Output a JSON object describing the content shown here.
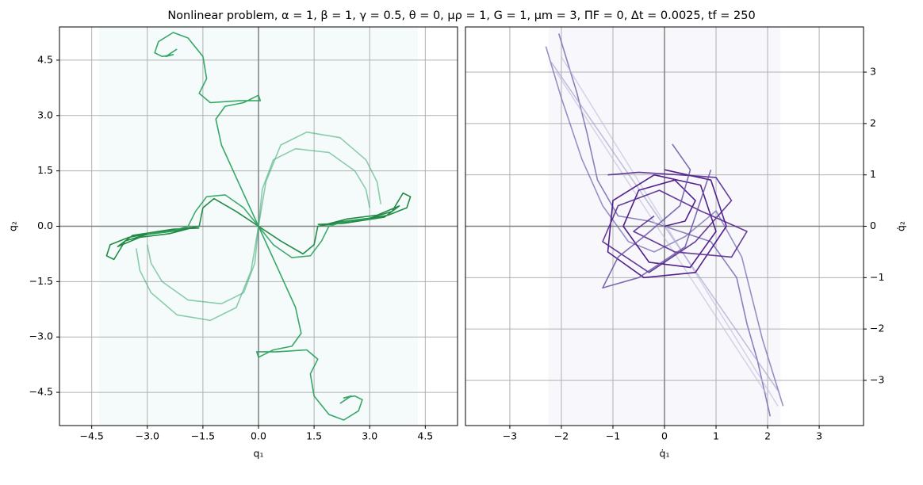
{
  "chart_data": [
    {
      "type": "line",
      "title": "Nonlinear problem, α = 1, β = 1, γ = 0.5, θ = 0, μρ = 1, G = 1, μm = 3, ΠF = 0, Δt = 0.0025, tf = 250",
      "xlabel": "q₁",
      "ylabel": "q₂",
      "xlim": [
        -5.37,
        5.37
      ],
      "ylim": [
        -5.4,
        5.4
      ],
      "xticks": [
        {
          "value": -4.5,
          "label": "−4.5"
        },
        {
          "value": -3,
          "label": "−3.0"
        },
        {
          "value": -1.5,
          "label": "−1.5"
        },
        {
          "value": 0,
          "label": "0.0"
        },
        1.5,
        {
          "value": 3,
          "label": "3.0"
        },
        4.5
      ],
      "yticks": [
        {
          "value": -4.5,
          "label": "−4.5"
        },
        {
          "value": -3,
          "label": "−3.0"
        },
        {
          "value": -1.5,
          "label": "−1.5"
        },
        {
          "value": 0,
          "label": "0.0"
        },
        1.5,
        {
          "value": 3,
          "label": "3.0"
        },
        4.5
      ],
      "y_axis_side": "left",
      "grid": true,
      "span_x": [
        -4.3,
        4.3
      ],
      "span_color": "#f5fbfb",
      "series": [
        {
          "color": "#2ca25f",
          "opacity": 0.95,
          "x": [
            0,
            -0.5,
            -1.0,
            -1.15,
            -0.9,
            -0.4,
            0.0,
            0.05,
            -0.5,
            -1.3,
            -1.6,
            -1.4,
            -1.5,
            -1.9,
            -2.3,
            -2.7,
            -2.8,
            -2.6,
            -2.3,
            -2.5,
            -2.2
          ],
          "values": [
            0,
            1.1,
            2.2,
            2.9,
            3.25,
            3.35,
            3.55,
            3.4,
            3.4,
            3.35,
            3.6,
            4.0,
            4.6,
            5.1,
            5.25,
            5.0,
            4.7,
            4.6,
            4.65,
            4.6,
            4.8
          ]
        },
        {
          "color": "#2ca25f",
          "opacity": 0.95,
          "x": [
            0,
            0.5,
            1.0,
            1.15,
            0.9,
            0.4,
            0.0,
            -0.05,
            0.5,
            1.3,
            1.6,
            1.4,
            1.5,
            1.9,
            2.3,
            2.7,
            2.8,
            2.6,
            2.3,
            2.5,
            2.2
          ],
          "values": [
            0,
            -1.1,
            -2.2,
            -2.9,
            -3.25,
            -3.35,
            -3.55,
            -3.4,
            -3.4,
            -3.35,
            -3.6,
            -4.0,
            -4.6,
            -5.1,
            -5.25,
            -5.0,
            -4.7,
            -4.6,
            -4.65,
            -4.6,
            -4.8
          ]
        },
        {
          "color": "#238b45",
          "opacity": 1,
          "x": [
            0,
            0.6,
            1.2,
            1.5,
            1.6,
            2.2,
            3.0,
            3.6,
            3.9,
            4.1,
            4.0,
            3.5,
            2.5,
            1.7,
            2.4,
            3.2,
            3.8,
            3.4,
            2.3,
            1.6
          ],
          "values": [
            0,
            -0.4,
            -0.75,
            -0.5,
            0.0,
            0.12,
            0.22,
            0.4,
            0.9,
            0.8,
            0.5,
            0.3,
            0.12,
            0.02,
            0.2,
            0.3,
            0.55,
            0.25,
            0.08,
            0.05
          ]
        },
        {
          "color": "#238b45",
          "opacity": 1,
          "x": [
            0,
            -0.6,
            -1.2,
            -1.5,
            -1.6,
            -2.2,
            -3.0,
            -3.6,
            -3.9,
            -4.1,
            -4.0,
            -3.5,
            -2.5,
            -1.7,
            -2.4,
            -3.2,
            -3.8,
            -3.4,
            -2.3,
            -1.6
          ],
          "values": [
            0,
            0.4,
            0.75,
            0.5,
            0.0,
            -0.12,
            -0.22,
            -0.4,
            -0.9,
            -0.8,
            -0.5,
            -0.3,
            -0.12,
            -0.02,
            -0.2,
            -0.3,
            -0.55,
            -0.25,
            -0.08,
            -0.05
          ]
        },
        {
          "color": "#41ae76",
          "opacity": 0.6,
          "x": [
            0,
            0.2,
            0.6,
            1.3,
            2.2,
            2.9,
            3.2,
            3.3
          ],
          "values": [
            0,
            1.2,
            2.2,
            2.55,
            2.4,
            1.8,
            1.2,
            0.6
          ]
        },
        {
          "color": "#41ae76",
          "opacity": 0.6,
          "x": [
            0,
            0.1,
            0.4,
            1.0,
            1.9,
            2.6,
            2.9,
            3.0
          ],
          "values": [
            0,
            1.0,
            1.8,
            2.1,
            2.0,
            1.5,
            1.0,
            0.5
          ]
        },
        {
          "color": "#41ae76",
          "opacity": 0.6,
          "x": [
            0,
            -0.2,
            -0.6,
            -1.3,
            -2.2,
            -2.9,
            -3.2,
            -3.3
          ],
          "values": [
            0,
            -1.2,
            -2.2,
            -2.55,
            -2.4,
            -1.8,
            -1.2,
            -0.6
          ]
        },
        {
          "color": "#41ae76",
          "opacity": 0.6,
          "x": [
            0,
            -0.1,
            -0.4,
            -1.0,
            -1.9,
            -2.6,
            -2.9,
            -3.0
          ],
          "values": [
            0,
            -1.0,
            -1.8,
            -2.1,
            -2.0,
            -1.5,
            -1.0,
            -0.5
          ]
        },
        {
          "color": "#2ca25f",
          "opacity": 0.9,
          "x": [
            0,
            -0.4,
            -0.9,
            -1.4,
            -1.7,
            -1.9,
            -2.4,
            -3.0
          ],
          "values": [
            0,
            0.5,
            0.85,
            0.8,
            0.4,
            0.0,
            -0.15,
            -0.2
          ]
        },
        {
          "color": "#2ca25f",
          "opacity": 0.9,
          "x": [
            0,
            0.4,
            0.9,
            1.4,
            1.7,
            1.9,
            2.4,
            3.0
          ],
          "values": [
            0,
            -0.5,
            -0.85,
            -0.8,
            -0.4,
            0.0,
            0.15,
            0.2
          ]
        }
      ]
    },
    {
      "type": "line",
      "xlabel": "q̇₁",
      "ylabel": "q̇₂",
      "xlim": [
        -3.86,
        3.86
      ],
      "ylim": [
        -3.88,
        3.88
      ],
      "xticks": [
        {
          "value": -3,
          "label": "−3"
        },
        {
          "value": -2,
          "label": "−2"
        },
        {
          "value": -1,
          "label": "−1"
        },
        0,
        1,
        2,
        3
      ],
      "yticks": [
        {
          "value": -3,
          "label": "−3"
        },
        {
          "value": -2,
          "label": "−2"
        },
        {
          "value": -1,
          "label": "−1"
        },
        0,
        1,
        2,
        3
      ],
      "y_axis_side": "right",
      "grid": true,
      "span_x": [
        -2.25,
        2.25
      ],
      "span_color": "#f8f8fc",
      "series": [
        {
          "color": "#756bb1",
          "opacity": 0.85,
          "x": [
            -2.05,
            -1.7,
            -1.5,
            -1.3,
            -0.9,
            -0.3,
            0.3,
            0.9,
            1.4,
            1.6,
            1.8,
            2.05
          ],
          "values": [
            3.75,
            2.6,
            1.8,
            0.9,
            0.2,
            0.1,
            -0.1,
            -0.3,
            -1.0,
            -1.9,
            -2.6,
            -3.7
          ]
        },
        {
          "color": "#756bb1",
          "opacity": 0.75,
          "x": [
            -2.3,
            -2.0,
            -1.6,
            -1.2,
            -0.7,
            -0.2,
            0.4,
            1.0,
            1.5,
            1.9,
            2.3
          ],
          "values": [
            3.5,
            2.5,
            1.3,
            0.4,
            -0.3,
            -0.5,
            -0.2,
            0.3,
            -0.6,
            -2.2,
            -3.5
          ]
        },
        {
          "color": "#bcbddc",
          "opacity": 0.6,
          "x": [
            -2.0,
            2.2
          ],
          "values": [
            3.3,
            -3.5
          ]
        },
        {
          "color": "#bcbddc",
          "opacity": 0.6,
          "x": [
            -2.1,
            2.0
          ],
          "values": [
            3.0,
            -3.3
          ]
        },
        {
          "color": "#9e9ac8",
          "opacity": 0.6,
          "x": [
            -2.2,
            2.2
          ],
          "values": [
            3.2,
            -3.2
          ]
        },
        {
          "color": "#4a1486",
          "opacity": 0.95,
          "x": [
            0,
            0.4,
            0.6,
            0.2,
            -0.5,
            -0.8,
            -0.3,
            0.5,
            1.0,
            0.7,
            -0.2,
            -1.0,
            -1.1,
            -0.4,
            0.6,
            1.2,
            0.9,
            0
          ],
          "values": [
            0,
            0.1,
            0.5,
            0.9,
            0.7,
            0,
            -0.7,
            -0.8,
            -0.1,
            0.8,
            1.0,
            0.5,
            -0.5,
            -1.0,
            -0.9,
            0,
            0.9,
            1.1
          ]
        },
        {
          "color": "#54278f",
          "opacity": 0.9,
          "x": [
            -1.1,
            -0.5,
            0.3,
            1.0,
            1.3,
            0.6,
            -0.3,
            -1.2,
            -0.9,
            -0.1,
            0.7,
            1.6,
            1.3,
            0.2,
            -0.6,
            -0.2
          ],
          "values": [
            1.0,
            1.05,
            1.0,
            0.95,
            0.5,
            -0.3,
            -0.9,
            -0.3,
            0.4,
            0.7,
            0.3,
            -0.1,
            -0.6,
            -0.5,
            -0.1,
            0.2
          ]
        },
        {
          "color": "#6a51a3",
          "opacity": 0.85,
          "x": [
            0.15,
            0.5,
            0.3,
            -0.4,
            -0.9,
            -1.2,
            -0.5,
            0.4,
            0.9
          ],
          "values": [
            1.6,
            1.1,
            0.4,
            -0.2,
            -0.6,
            -1.2,
            -1.0,
            -0.4,
            1.1
          ]
        }
      ]
    }
  ]
}
